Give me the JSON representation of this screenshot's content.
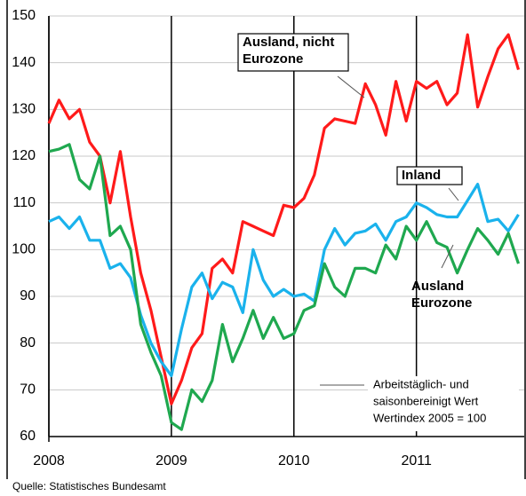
{
  "chart_data": {
    "type": "line",
    "x": [
      2008,
      2008.083,
      2008.167,
      2008.25,
      2008.333,
      2008.417,
      2008.5,
      2008.583,
      2008.667,
      2008.75,
      2008.833,
      2008.917,
      2009,
      2009.083,
      2009.167,
      2009.25,
      2009.333,
      2009.417,
      2009.5,
      2009.583,
      2009.667,
      2009.75,
      2009.833,
      2009.917,
      2010,
      2010.083,
      2010.167,
      2010.25,
      2010.333,
      2010.417,
      2010.5,
      2010.583,
      2010.667,
      2010.75,
      2010.833,
      2010.917,
      2011,
      2011.083,
      2011.167,
      2011.25,
      2011.333,
      2011.417,
      2011.5,
      2011.583,
      2011.667,
      2011.75,
      2011.833
    ],
    "series": [
      {
        "label_lines": [
          "Ausland, nicht",
          "Eurozone"
        ],
        "color": "#ff1a1a",
        "values": [
          127,
          132,
          128,
          130,
          123,
          120,
          110,
          121,
          107,
          95,
          87,
          77,
          67,
          72,
          79,
          82,
          96,
          98,
          95,
          106,
          105,
          104,
          103,
          109.5,
          109,
          111,
          116,
          126,
          128,
          127.5,
          127,
          135.5,
          131,
          124.5,
          136,
          127.5,
          136,
          134.5,
          136,
          131,
          133.5,
          146,
          130.5,
          137,
          143,
          146,
          138.5
        ]
      },
      {
        "label_lines": [
          "Inland"
        ],
        "color": "#1ab2ec",
        "values": [
          106,
          107,
          104.5,
          107,
          102,
          102,
          96,
          97,
          94,
          86,
          80,
          76,
          73,
          83,
          92,
          95,
          89.5,
          93,
          92,
          86.5,
          100,
          93.5,
          90,
          91.5,
          90,
          90.5,
          89,
          100,
          104.5,
          101,
          103.5,
          104,
          105.5,
          102,
          106,
          107,
          110,
          109,
          107.5,
          107,
          107,
          110.5,
          114,
          106,
          106.5,
          104,
          107.5
        ]
      },
      {
        "label_lines": [
          "Ausland",
          "Eurozone"
        ],
        "color": "#1fa84f",
        "values": [
          121,
          121.5,
          122.5,
          115,
          113,
          120,
          103,
          105,
          100,
          84,
          78,
          73,
          63,
          61.5,
          70,
          67.5,
          72,
          84,
          76,
          81,
          87,
          81,
          85.5,
          81,
          82,
          87,
          88,
          97,
          92,
          90,
          96,
          96,
          95,
          101,
          98,
          105,
          102,
          106,
          101.5,
          100.5,
          95,
          100,
          104.5,
          102,
          99,
          103.5,
          97
        ]
      }
    ],
    "xlim": [
      2008,
      2011.88
    ],
    "xticks": [
      2008,
      2009,
      2010,
      2011
    ],
    "ylim": [
      60,
      150
    ],
    "yticks": [
      60,
      70,
      80,
      90,
      100,
      110,
      120,
      130,
      140,
      150
    ],
    "grid": true,
    "note": [
      "Arbeitstäglich- und",
      "saisonbereinigt Wert",
      "Wertindex  2005 = 100"
    ],
    "source": "Quelle: Statistisches Bundesamt"
  }
}
